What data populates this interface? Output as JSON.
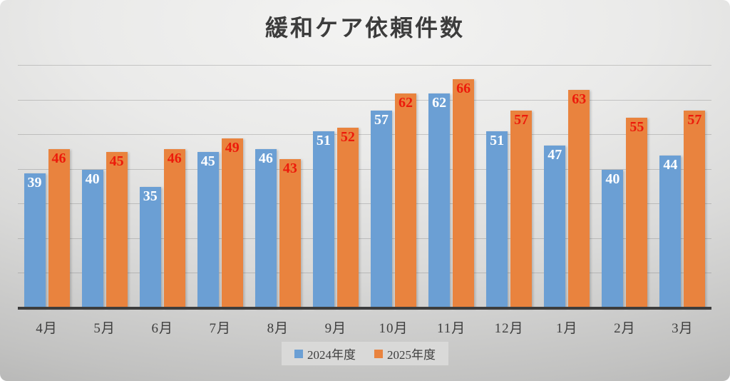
{
  "chart_data": {
    "type": "bar",
    "title": "緩和ケア依頼件数",
    "categories": [
      "4月",
      "5月",
      "6月",
      "7月",
      "8月",
      "9月",
      "10月",
      "11月",
      "12月",
      "1月",
      "2月",
      "3月"
    ],
    "series": [
      {
        "name": "2024年度",
        "color": "#6b9fd4",
        "label_color": "#ffffff",
        "values": [
          39,
          40,
          35,
          45,
          46,
          51,
          57,
          62,
          51,
          47,
          40,
          44
        ]
      },
      {
        "name": "2025年度",
        "color": "#e9833e",
        "label_color": "#ec1b0b",
        "values": [
          46,
          45,
          46,
          49,
          43,
          52,
          62,
          66,
          57,
          63,
          55,
          57
        ]
      }
    ],
    "ylim": [
      0,
      70
    ],
    "gridline_step": 10,
    "grid": true,
    "ylabel": "",
    "xlabel": "",
    "legend_position": "bottom",
    "axis_color": "#3d3d3d",
    "gridline_color": "rgba(105,105,105,0.30)",
    "text_color": "#3e3e3e",
    "background": "gray-gradient"
  }
}
